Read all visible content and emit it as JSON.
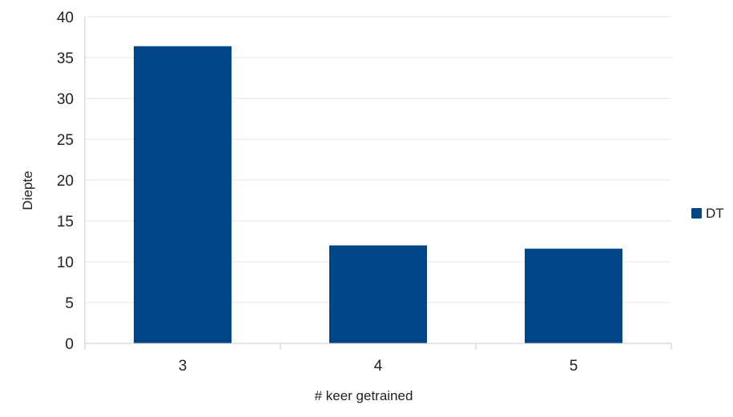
{
  "chart_data": {
    "type": "bar",
    "categories": [
      "3",
      "4",
      "5"
    ],
    "series": [
      {
        "name": "DT",
        "values": [
          36.4,
          12.0,
          11.6
        ],
        "color": "#004586"
      }
    ],
    "title": "",
    "xlabel": "# keer getrained",
    "ylabel": "Diepte",
    "ylim": [
      0,
      40
    ],
    "yticks": [
      "0",
      "5",
      "10",
      "15",
      "20",
      "25",
      "30",
      "35",
      "40"
    ],
    "grid": true,
    "legend_position": "right"
  }
}
